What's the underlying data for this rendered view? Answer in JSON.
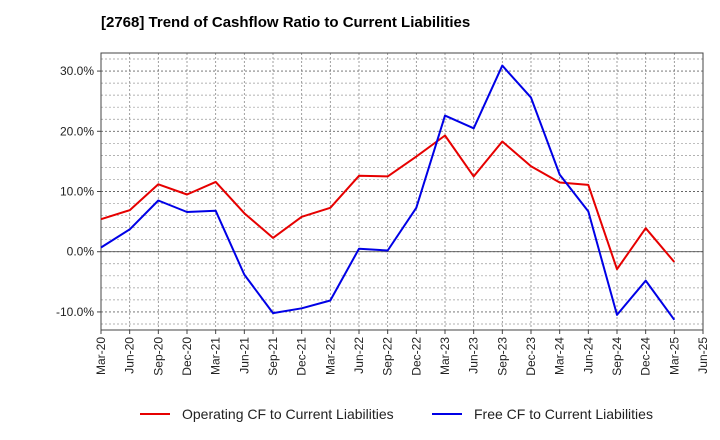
{
  "chart_data": {
    "type": "line",
    "title": "[2768]  Trend of Cashflow Ratio to Current Liabilities",
    "xlabel": "",
    "ylabel": "",
    "categories": [
      "Mar-20",
      "Jun-20",
      "Sep-20",
      "Dec-20",
      "Mar-21",
      "Jun-21",
      "Sep-21",
      "Dec-21",
      "Mar-22",
      "Jun-22",
      "Sep-22",
      "Dec-22",
      "Mar-23",
      "Jun-23",
      "Sep-23",
      "Dec-23",
      "Mar-24",
      "Jun-24",
      "Sep-24",
      "Dec-24",
      "Mar-25",
      "Jun-25"
    ],
    "ylim": [
      -13.0,
      33.0
    ],
    "yticks": [
      -10,
      0,
      10,
      20,
      30
    ],
    "ytick_labels": [
      "-10.0%",
      "0.0%",
      "10.0%",
      "20.0%",
      "30.0%"
    ],
    "grid": true,
    "legend_position": "bottom",
    "series": [
      {
        "name": "Operating CF to Current Liabilities",
        "color": "#e60000",
        "values": [
          5.4,
          6.9,
          11.2,
          9.5,
          11.6,
          6.4,
          2.3,
          5.8,
          7.3,
          12.6,
          12.5,
          15.8,
          19.3,
          12.5,
          18.3,
          14.2,
          11.5,
          11.1,
          -2.9,
          3.9,
          -1.7,
          null
        ]
      },
      {
        "name": "Free CF to Current Liabilities",
        "color": "#0000e6",
        "values": [
          0.7,
          3.7,
          8.5,
          6.6,
          6.8,
          -3.8,
          -10.2,
          -9.4,
          -8.1,
          0.5,
          0.2,
          7.3,
          22.6,
          20.5,
          30.9,
          25.6,
          12.8,
          6.7,
          -10.5,
          -4.8,
          -11.3,
          null
        ]
      }
    ]
  }
}
